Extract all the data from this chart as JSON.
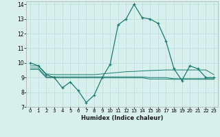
{
  "xlabel": "Humidex (Indice chaleur)",
  "x_values": [
    0,
    1,
    2,
    3,
    4,
    5,
    6,
    7,
    8,
    9,
    10,
    11,
    12,
    13,
    14,
    15,
    16,
    17,
    18,
    19,
    20,
    21,
    22,
    23
  ],
  "main_line": [
    10.0,
    9.8,
    9.2,
    9.0,
    8.3,
    8.7,
    8.1,
    7.3,
    7.8,
    9.0,
    9.9,
    12.6,
    13.0,
    14.0,
    13.1,
    13.0,
    12.7,
    11.5,
    9.6,
    8.8,
    9.8,
    9.6,
    9.0,
    9.0
  ],
  "flat_line1": [
    9.8,
    9.8,
    9.25,
    9.2,
    9.2,
    9.2,
    9.2,
    9.2,
    9.2,
    9.25,
    9.3,
    9.35,
    9.4,
    9.42,
    9.45,
    9.48,
    9.5,
    9.52,
    9.52,
    9.52,
    9.52,
    9.52,
    9.52,
    9.2
  ],
  "flat_line2": [
    9.65,
    9.65,
    9.05,
    9.05,
    9.05,
    9.05,
    9.05,
    9.05,
    9.05,
    9.05,
    9.05,
    9.05,
    9.05,
    9.05,
    9.05,
    9.0,
    9.0,
    9.0,
    8.92,
    8.92,
    8.92,
    8.92,
    8.92,
    8.92
  ],
  "flat_line3": [
    9.55,
    9.55,
    8.98,
    8.98,
    8.98,
    8.98,
    8.98,
    8.98,
    8.98,
    8.98,
    8.98,
    8.98,
    8.98,
    8.98,
    8.98,
    8.9,
    8.9,
    8.9,
    8.88,
    8.88,
    8.88,
    8.88,
    8.88,
    8.88
  ],
  "line_color": "#1a7a6e",
  "bg_color": "#d8f0ec",
  "grid_color": "#b8dcd8",
  "xlim": [
    -0.5,
    23.5
  ],
  "ylim": [
    7,
    14.2
  ],
  "yticks": [
    7,
    8,
    9,
    10,
    11,
    12,
    13,
    14
  ]
}
